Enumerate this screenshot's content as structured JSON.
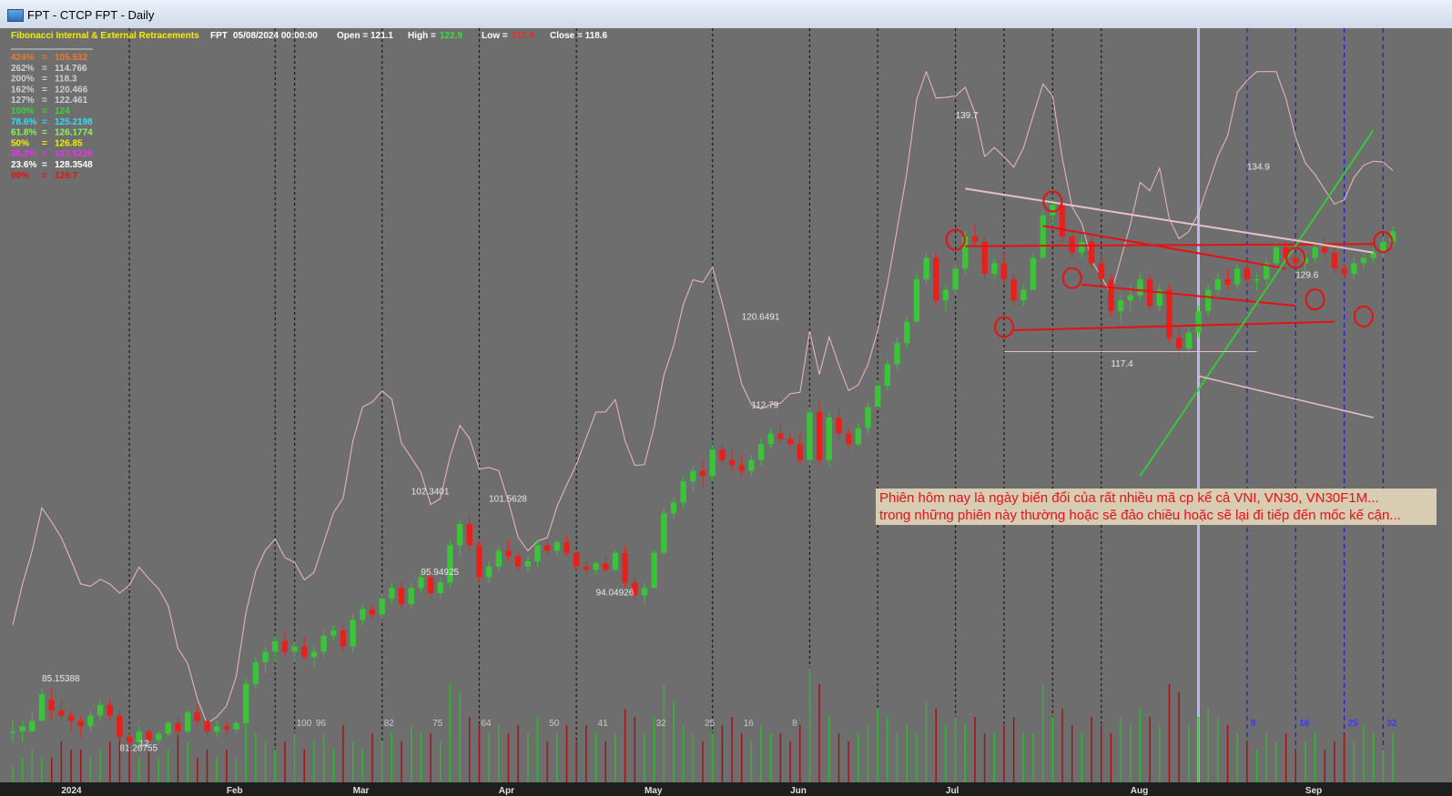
{
  "window": {
    "title": "FPT - CTCP FPT - Daily"
  },
  "chart_data": {
    "type": "candlestick",
    "title": "Fibonacci Internal & External Retracements",
    "header": {
      "symbol": "FPT",
      "date": "05/08/2024 00:00:00",
      "open_label": "Open = 121.1",
      "high_label": "High = ",
      "high_value": "122.9",
      "low_label": "Low = ",
      "low_value": "117.4",
      "close_label": "Close = 118.6"
    },
    "fib_levels": [
      {
        "pct": "424%",
        "value": "105.532",
        "color": "#f07a2a"
      },
      {
        "pct": "262%",
        "value": "114.766",
        "color": "#d0d0d0"
      },
      {
        "pct": "200%",
        "value": "118.3",
        "color": "#d0d0d0"
      },
      {
        "pct": "162%",
        "value": "120.466",
        "color": "#d0d0d0"
      },
      {
        "pct": "127%",
        "value": "122.461",
        "color": "#d0d0d0"
      },
      {
        "pct": "100%",
        "value": "124",
        "color": "#38d838"
      },
      {
        "pct": "78.6%",
        "value": "125.2198",
        "color": "#30e0f0"
      },
      {
        "pct": "61.8%",
        "value": "126.1774",
        "color": "#90f060"
      },
      {
        "pct": "50%",
        "value": "126.85",
        "color": "#f0f000"
      },
      {
        "pct": "38.2%",
        "value": "127.5226",
        "color": "#f030f0"
      },
      {
        "pct": "23.6%",
        "value": "128.3548",
        "color": "#ffffff"
      },
      {
        "pct": "00%",
        "value": "129.7",
        "color": "#e81010"
      }
    ],
    "x_axis_months": [
      "2024",
      "Feb",
      "Mar",
      "Apr",
      "May",
      "Jun",
      "Jul",
      "Aug",
      "Sep"
    ],
    "cycle_counts": [
      "100",
      "96",
      "82",
      "75",
      "64",
      "50",
      "41",
      "32",
      "25",
      "16",
      "8"
    ],
    "blue_cycle_counts": [
      "8",
      "16",
      "25",
      "32"
    ],
    "price_labels": [
      "85.15388",
      "81.26755",
      "12",
      "102.3401",
      "95.94925",
      "101.5628",
      "94.04926",
      "120.6491",
      "112.79",
      "139.7",
      "117.4",
      "134.9",
      "129.6"
    ],
    "ohlc": [
      [
        82,
        83,
        81,
        82
      ],
      [
        82,
        83,
        81,
        82.5
      ],
      [
        82,
        84,
        82,
        83
      ],
      [
        83,
        86,
        83,
        85.5
      ],
      [
        85,
        86,
        83,
        84
      ],
      [
        84,
        85,
        83,
        83.5
      ],
      [
        83.5,
        84,
        82,
        83
      ],
      [
        83,
        83.5,
        81.5,
        82.5
      ],
      [
        82.5,
        84,
        82,
        83.5
      ],
      [
        83.5,
        85,
        83,
        84.5
      ],
      [
        84.5,
        85,
        83,
        83.5
      ],
      [
        83.5,
        84,
        81,
        81.5
      ],
      [
        81.5,
        82,
        80.5,
        81
      ],
      [
        81,
        82.5,
        80.5,
        82
      ],
      [
        82,
        82.5,
        80.8,
        81.2
      ],
      [
        81.2,
        82,
        80.8,
        81.8
      ],
      [
        81.8,
        83,
        81.5,
        82.8
      ],
      [
        82.8,
        83.5,
        81.5,
        82
      ],
      [
        82,
        84,
        81.8,
        83.8
      ],
      [
        83.8,
        84.5,
        82.5,
        83
      ],
      [
        83,
        83.2,
        81.5,
        82
      ],
      [
        82,
        83,
        81.5,
        82.5
      ],
      [
        82.5,
        83,
        81.8,
        82.2
      ],
      [
        82.2,
        83,
        81.8,
        82.8
      ],
      [
        82.8,
        87,
        82.8,
        86.5
      ],
      [
        86.5,
        89,
        86,
        88.5
      ],
      [
        88.5,
        90,
        87.5,
        89.5
      ],
      [
        89.5,
        91,
        88.5,
        90.5
      ],
      [
        90.5,
        91.5,
        89,
        89.5
      ],
      [
        89.5,
        90.5,
        88.5,
        90
      ],
      [
        90,
        91,
        88.8,
        89
      ],
      [
        89,
        90,
        88,
        89.5
      ],
      [
        89.5,
        91.5,
        89,
        91
      ],
      [
        91,
        92,
        90.5,
        91.5
      ],
      [
        91.5,
        92,
        89.5,
        90
      ],
      [
        90,
        93,
        89.5,
        92.5
      ],
      [
        92.5,
        94,
        92,
        93.5
      ],
      [
        93.5,
        94,
        92.5,
        93
      ],
      [
        93,
        95,
        92.5,
        94.5
      ],
      [
        94.5,
        96,
        94,
        95.5
      ],
      [
        95.5,
        96,
        93.5,
        94
      ],
      [
        94,
        96,
        93.5,
        95.5
      ],
      [
        95.5,
        97,
        95,
        96.5
      ],
      [
        96.5,
        97,
        94.5,
        95
      ],
      [
        95,
        96.5,
        94.5,
        96
      ],
      [
        96,
        100,
        95.5,
        99.5
      ],
      [
        99.5,
        102,
        98.5,
        101.5
      ],
      [
        101.5,
        102.3,
        99,
        99.5
      ],
      [
        99.5,
        100,
        96,
        96.5
      ],
      [
        96.5,
        98,
        96,
        97.5
      ],
      [
        97.5,
        99.5,
        97,
        99
      ],
      [
        99,
        100,
        98,
        98.5
      ],
      [
        98.5,
        99,
        97,
        97.5
      ],
      [
        97.5,
        98.5,
        97,
        98
      ],
      [
        98,
        100,
        97.5,
        99.5
      ],
      [
        99.5,
        100,
        98.5,
        99
      ],
      [
        99,
        100,
        98.5,
        99.8
      ],
      [
        99.8,
        100.5,
        98.5,
        98.8
      ],
      [
        98.8,
        99,
        97,
        97.5
      ],
      [
        97.5,
        98,
        96.8,
        97.2
      ],
      [
        97.2,
        98,
        96.8,
        97.8
      ],
      [
        97.8,
        98.5,
        97,
        97.2
      ],
      [
        97.2,
        99,
        97,
        98.8
      ],
      [
        98.8,
        99.5,
        95.5,
        96
      ],
      [
        96,
        96.5,
        94.2,
        94.8
      ],
      [
        94.8,
        96,
        94,
        95.5
      ],
      [
        95.5,
        99,
        95.5,
        98.8
      ],
      [
        98.8,
        103,
        98.5,
        102.5
      ],
      [
        102.5,
        104,
        102,
        103.5
      ],
      [
        103.5,
        106,
        103,
        105.5
      ],
      [
        105.5,
        107,
        104.5,
        106.5
      ],
      [
        106.5,
        107.5,
        105,
        106
      ],
      [
        106,
        109,
        105.5,
        108.5
      ],
      [
        108.5,
        109,
        107,
        107.5
      ],
      [
        107.5,
        108.5,
        106.5,
        107
      ],
      [
        107,
        108,
        106,
        106.5
      ],
      [
        106.5,
        108,
        106,
        107.5
      ],
      [
        107.5,
        109.5,
        107,
        109
      ],
      [
        109,
        110.5,
        108.5,
        110
      ],
      [
        110,
        111,
        109,
        109.5
      ],
      [
        109.5,
        110,
        108.5,
        109
      ],
      [
        109,
        110,
        107,
        107.5
      ],
      [
        107.5,
        112.5,
        107,
        112
      ],
      [
        112,
        113,
        107,
        107.5
      ],
      [
        107.5,
        112,
        107,
        111.5
      ],
      [
        111.5,
        112.5,
        109.5,
        110
      ],
      [
        110,
        110.5,
        108.5,
        109
      ],
      [
        109,
        111,
        108.8,
        110.5
      ],
      [
        110.5,
        113,
        110,
        112.5
      ],
      [
        112.5,
        115,
        112.5,
        114.5
      ],
      [
        114.5,
        117,
        114,
        116.5
      ],
      [
        116.5,
        119,
        116,
        118.5
      ],
      [
        118.5,
        121,
        118,
        120.5
      ],
      [
        120.5,
        125,
        120.5,
        124.5
      ],
      [
        124.5,
        127,
        124,
        126.5
      ],
      [
        126.5,
        127,
        122,
        122.5
      ],
      [
        122.5,
        124,
        121.5,
        123.5
      ],
      [
        123.5,
        126,
        123,
        125.5
      ],
      [
        125.5,
        129,
        125,
        128.5
      ],
      [
        128.5,
        129.7,
        127.5,
        128
      ],
      [
        128,
        128.5,
        124.5,
        125
      ],
      [
        125,
        126.5,
        124.5,
        126
      ],
      [
        126,
        127,
        124,
        124.5
      ],
      [
        124.5,
        125,
        122,
        122.5
      ],
      [
        122.5,
        124,
        122,
        123.5
      ],
      [
        123.5,
        127,
        123.5,
        126.5
      ],
      [
        126.5,
        131,
        126.5,
        130.5
      ],
      [
        130.5,
        132,
        129.5,
        131.5
      ],
      [
        131.5,
        132,
        128,
        128.5
      ],
      [
        128.5,
        129,
        126.5,
        127
      ],
      [
        127,
        128.5,
        126.5,
        128
      ],
      [
        128,
        128.5,
        125.5,
        126
      ],
      [
        126,
        127,
        124,
        124.5
      ],
      [
        124.5,
        125,
        121,
        121.5
      ],
      [
        121.5,
        123,
        120.5,
        122.5
      ],
      [
        122.5,
        124,
        121.5,
        123
      ],
      [
        123,
        125,
        122.5,
        124.5
      ],
      [
        124.5,
        125,
        121.5,
        122
      ],
      [
        122,
        124,
        121.5,
        123.5
      ],
      [
        123.5,
        124,
        118.5,
        119
      ],
      [
        119,
        120,
        117.4,
        118
      ],
      [
        118,
        120,
        117.5,
        119.5
      ],
      [
        119.5,
        122,
        119,
        121.5
      ],
      [
        121.5,
        124,
        121,
        123.5
      ],
      [
        123.5,
        125,
        123,
        124.5
      ],
      [
        124.5,
        125.5,
        123.5,
        124
      ],
      [
        124,
        126,
        123.5,
        125.5
      ],
      [
        125.5,
        126,
        124,
        124.5
      ],
      [
        124.5,
        125,
        123.5,
        124.5
      ],
      [
        124.5,
        126.5,
        124,
        126
      ],
      [
        126,
        128,
        125.5,
        127.5
      ],
      [
        127.5,
        128,
        126,
        126.5
      ],
      [
        126.5,
        127,
        125.5,
        126
      ],
      [
        126,
        127,
        125,
        126.5
      ],
      [
        126.5,
        128,
        126,
        127.5
      ],
      [
        127.5,
        128.5,
        126.5,
        127
      ],
      [
        127,
        127.5,
        125,
        125.5
      ],
      [
        125.5,
        126,
        124.5,
        125
      ],
      [
        125,
        126.5,
        124.5,
        126
      ],
      [
        126,
        127,
        125.5,
        126.5
      ],
      [
        126.5,
        127.5,
        126,
        127
      ],
      [
        127,
        128.5,
        126.5,
        128
      ],
      [
        128,
        129.5,
        127.5,
        129
      ]
    ],
    "volume": [
      2,
      3,
      4,
      3,
      3,
      5,
      4,
      4,
      3,
      4,
      5,
      6,
      4,
      3,
      4,
      3,
      4,
      6,
      5,
      3,
      4,
      3,
      4,
      3,
      9,
      6,
      5,
      4,
      5,
      6,
      4,
      5,
      6,
      4,
      7,
      5,
      4,
      6,
      5,
      6,
      5,
      7,
      6,
      6,
      5,
      12,
      11,
      8,
      7,
      6,
      7,
      6,
      7,
      6,
      8,
      5,
      6,
      7,
      5,
      7,
      6,
      5,
      6,
      9,
      8,
      6,
      8,
      12,
      10,
      7,
      6,
      5,
      6,
      7,
      8,
      6,
      5,
      7,
      6,
      6,
      5,
      7,
      14,
      12,
      8,
      6,
      5,
      6,
      7,
      9,
      8,
      6,
      7,
      6,
      10,
      9,
      7,
      8,
      7,
      8,
      6,
      6,
      7,
      8,
      6,
      6,
      12,
      8,
      9,
      7,
      6,
      8,
      7,
      6,
      8,
      7,
      9,
      8,
      7,
      12,
      11,
      7,
      8,
      9,
      8,
      7,
      6,
      5,
      4,
      6,
      5,
      6,
      4,
      5,
      6,
      4,
      5,
      6,
      5,
      7,
      6,
      4,
      6
    ],
    "ylim": [
      78,
      145
    ]
  },
  "annotation": {
    "line1": "Phiên hôm nay là ngày biến đổi của rất nhiều mã cp kể cả VNI, VN30, VN30F1M...",
    "line2": "trong những phiên này thường hoặc sẽ đảo chiều hoặc sẽ lại đi tiếp đến mốc kế cận..."
  },
  "colors": {
    "bg": "#6e6e6e",
    "up": "#39c439",
    "down": "#e8201c",
    "grid": "#1a1a1a",
    "ratio_line": "#f2b8c6"
  }
}
